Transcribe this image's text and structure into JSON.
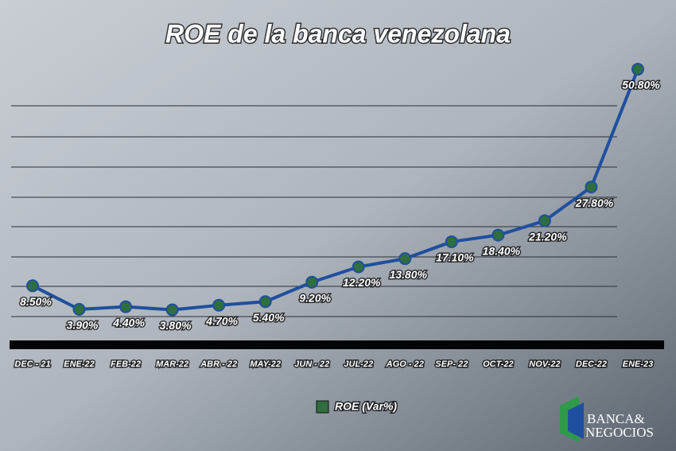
{
  "chart_data": {
    "type": "line",
    "title": "ROE de la banca venezolana",
    "categories": [
      "DEC - 21",
      "ENE-22",
      "FEB-22",
      "MAR-22",
      "ABR - 22",
      "MAY-22",
      "JUN - 22",
      "JUL-22",
      "AGO - 22",
      "SEP- 22",
      "OCT-22",
      "NOV-22",
      "DEC-22",
      "ENE-23"
    ],
    "series": [
      {
        "name": "ROE (Var%)",
        "color": "#1f4f9e",
        "marker_color": "#2f6e3e",
        "values": [
          8.5,
          3.9,
          4.4,
          3.8,
          4.7,
          5.4,
          9.2,
          12.2,
          13.8,
          17.1,
          18.4,
          21.2,
          27.8,
          50.8
        ],
        "value_labels": [
          "8.50%",
          "3.90%",
          "4.40%",
          "3.80%",
          "4.70%",
          "5.40%",
          "9.20%",
          "12.20%",
          "13.80%",
          "17.10%",
          "18.40%",
          "21.20%",
          "27.80%",
          "50.80%"
        ]
      }
    ],
    "ylim": [
      0,
      55
    ],
    "legend": "bottom"
  },
  "logo": [
    "BANCA&",
    "NEGOCIOS"
  ]
}
